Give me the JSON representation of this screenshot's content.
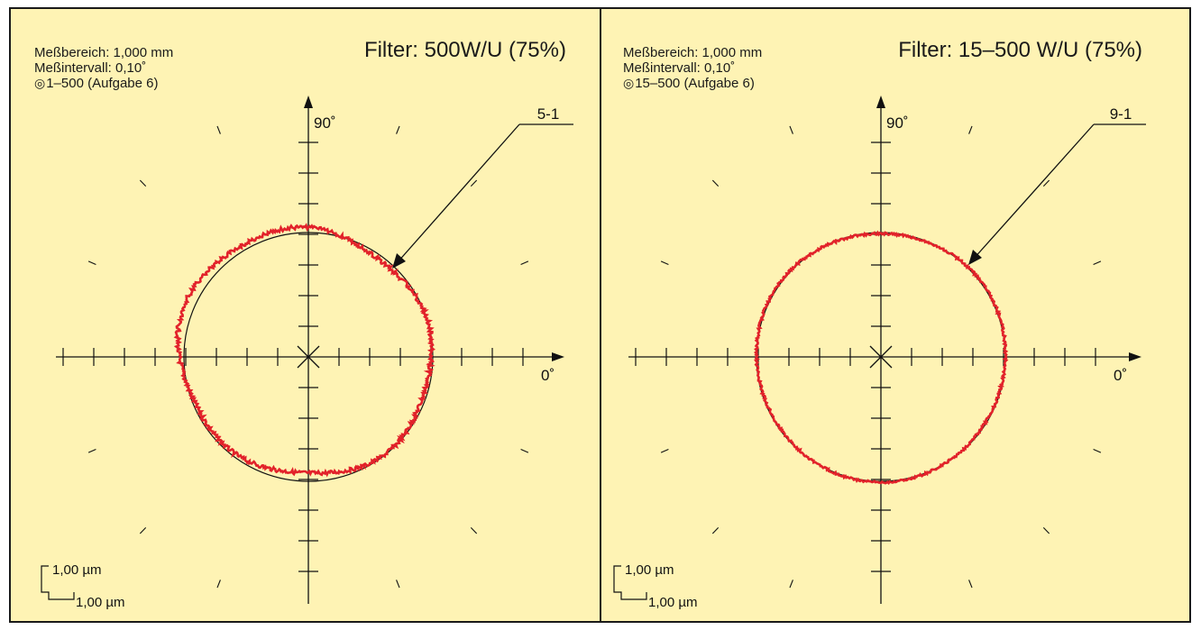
{
  "panels": [
    {
      "info": {
        "range": "Meßbereich: 1,000 mm",
        "interval": "Meßintervall: 0,10˚",
        "symbol": "◎",
        "tolerance": "1–500 (Aufgabe 6)"
      },
      "filter": "Filter: 500W/U (75%)",
      "angle_90": "90˚",
      "angle_0": "0˚",
      "callout": "5-1",
      "scale_v": "1,00 µm",
      "scale_h": "1,00 µm"
    },
    {
      "info": {
        "range": "Meßbereich: 1,000 mm",
        "interval": "Meßintervall: 0,10˚",
        "symbol": "◎",
        "tolerance": "15–500 (Aufgabe 6)"
      },
      "filter": "Filter: 15–500 W/U (75%)",
      "angle_90": "90˚",
      "angle_0": "0˚",
      "callout": "9-1",
      "scale_v": "1,00 µm",
      "scale_h": "1,00 µm"
    }
  ],
  "colors": {
    "background": "#fef3b4",
    "border": "#1a1a1a",
    "profile": "#e2222a",
    "reference": "#111111"
  }
}
